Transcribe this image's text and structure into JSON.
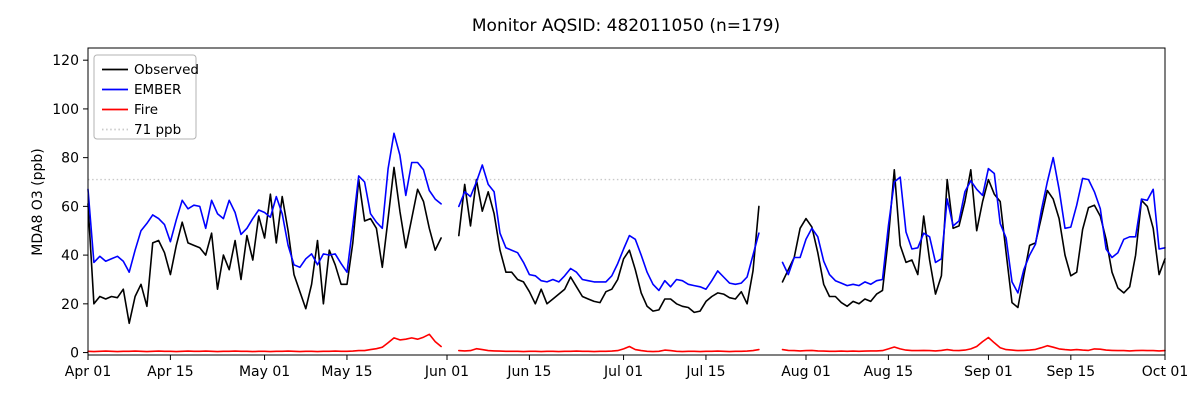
{
  "chart_data": {
    "type": "line",
    "title": "Monitor AQSID: 482011050 (n=179)",
    "xlabel": "",
    "ylabel": "MDA8 O3 (ppb)",
    "ylim": [
      -1,
      125
    ],
    "yticks": [
      0,
      20,
      40,
      60,
      80,
      100,
      120
    ],
    "xlim": [
      0,
      183
    ],
    "x_unit": "days since Apr 01",
    "xticks": [
      {
        "pos": 0,
        "label": "Apr 01"
      },
      {
        "pos": 14,
        "label": "Apr 15"
      },
      {
        "pos": 30,
        "label": "May 01"
      },
      {
        "pos": 44,
        "label": "May 15"
      },
      {
        "pos": 61,
        "label": "Jun 01"
      },
      {
        "pos": 75,
        "label": "Jun 15"
      },
      {
        "pos": 91,
        "label": "Jul 01"
      },
      {
        "pos": 105,
        "label": "Jul 15"
      },
      {
        "pos": 122,
        "label": "Aug 01"
      },
      {
        "pos": 136,
        "label": "Aug 15"
      },
      {
        "pos": 153,
        "label": "Sep 01"
      },
      {
        "pos": 167,
        "label": "Sep 15"
      },
      {
        "pos": 183,
        "label": "Oct 01"
      }
    ],
    "grid": false,
    "n_points": 179,
    "data_gaps": [
      "Jun 01-Jun 02",
      "Jul 25-Jul 27"
    ],
    "threshold": {
      "label": "71 ppb",
      "value": 71,
      "color": "#c9c9c9",
      "style": "dotted"
    },
    "legend": {
      "position": "upper-left",
      "entries": [
        {
          "label": "Observed",
          "color": "#000000",
          "dash": "solid"
        },
        {
          "label": "EMBER",
          "color": "#0000ff",
          "dash": "solid"
        },
        {
          "label": "Fire",
          "color": "#ff0000",
          "dash": "solid"
        },
        {
          "label": "71 ppb",
          "color": "#c9c9c9",
          "dash": "dotted"
        }
      ]
    },
    "series": [
      {
        "name": "Observed",
        "color": "#000000",
        "values": [
          61,
          20,
          23,
          22,
          23,
          22.5,
          26,
          12,
          23,
          28,
          19,
          45,
          46,
          41,
          32,
          44,
          53.5,
          45,
          44,
          43,
          40,
          49,
          26,
          40,
          34,
          46,
          30,
          48,
          38,
          56,
          47,
          65,
          45,
          64,
          50,
          32,
          25,
          18,
          28,
          46,
          20,
          42,
          36,
          28,
          28,
          45,
          71,
          54,
          55,
          51,
          35,
          55,
          76,
          58,
          43,
          55,
          67,
          62,
          51,
          42,
          47,
          null,
          null,
          48,
          69,
          52,
          71,
          58,
          66,
          57,
          42,
          33,
          33,
          30,
          29,
          25,
          20,
          26,
          20,
          22,
          24,
          26,
          31,
          27,
          23,
          22,
          21,
          20.5,
          25,
          26,
          30,
          38.5,
          42,
          34,
          24.5,
          19,
          17,
          17.5,
          22,
          22,
          20,
          19,
          18.5,
          16.5,
          17,
          21,
          23,
          24.5,
          24,
          22.5,
          22,
          25,
          20,
          33.5,
          60,
          null,
          null,
          null,
          29,
          34,
          39,
          51,
          55,
          51.5,
          41,
          28,
          23,
          23,
          20.5,
          19,
          21,
          20,
          22,
          21,
          24,
          25.5,
          47,
          75,
          44,
          37,
          38,
          32,
          56,
          38,
          24,
          31.5,
          71,
          51,
          52,
          62,
          75,
          50,
          62,
          71,
          65,
          62,
          41,
          20.5,
          18.5,
          31.5,
          44,
          45,
          55.5,
          66.5,
          63,
          55,
          40,
          31.5,
          33,
          50.5,
          59.5,
          60.5,
          56,
          46.5,
          33,
          26.5,
          24.5,
          27,
          40,
          62.5,
          60,
          51,
          32,
          38.5
        ]
      },
      {
        "name": "EMBER",
        "color": "#0000ff",
        "values": [
          67,
          37,
          39.5,
          37.5,
          38.5,
          39.5,
          37.5,
          33,
          42,
          50,
          53,
          56.5,
          55,
          52.5,
          45.5,
          54.5,
          62.5,
          59,
          60.5,
          60,
          51,
          62.5,
          57,
          55,
          62.5,
          57.5,
          48.5,
          51,
          55,
          58.5,
          57.5,
          55.5,
          64,
          57,
          44,
          36,
          35,
          38.5,
          40.5,
          36,
          40.5,
          40,
          40.5,
          36.5,
          33,
          52,
          72.5,
          70,
          57,
          53.5,
          51,
          75.5,
          90,
          81,
          64.5,
          78,
          78,
          75,
          66.5,
          63,
          61,
          null,
          null,
          60,
          66,
          64,
          70,
          77,
          69,
          66,
          49,
          43,
          42,
          41,
          37,
          32,
          31.5,
          29.5,
          29,
          30,
          29,
          31.5,
          34.5,
          33,
          30,
          29.5,
          29,
          29,
          29,
          31.5,
          36.5,
          42.5,
          48,
          46.5,
          40,
          33,
          28,
          25.5,
          29.5,
          27,
          30,
          29.5,
          28,
          27.5,
          27,
          26,
          29.5,
          33.5,
          31,
          28.5,
          28,
          28.5,
          31,
          40,
          49,
          null,
          null,
          null,
          37,
          32,
          39,
          39,
          46.5,
          51,
          47.5,
          37.5,
          32,
          29.5,
          28.5,
          27.5,
          28,
          27.5,
          29,
          28,
          29.5,
          30,
          52,
          70,
          72,
          49.5,
          42.5,
          43,
          49,
          47.5,
          37,
          38.5,
          63,
          52,
          54,
          66,
          70.5,
          67,
          64.5,
          75.5,
          73.5,
          53,
          47,
          29,
          24.5,
          34,
          40,
          44.5,
          58.5,
          70,
          80,
          67,
          51,
          51.5,
          60.5,
          71.5,
          71,
          66,
          59,
          42.5,
          39,
          41,
          46.5,
          47.5,
          47.5,
          63,
          62.5,
          67,
          42.5,
          43
        ]
      },
      {
        "name": "Fire",
        "color": "#ff0000",
        "values": [
          0.5,
          0.4,
          0.5,
          0.6,
          0.5,
          0.4,
          0.5,
          0.5,
          0.6,
          0.5,
          0.4,
          0.5,
          0.6,
          0.5,
          0.5,
          0.4,
          0.5,
          0.6,
          0.5,
          0.5,
          0.6,
          0.5,
          0.4,
          0.5,
          0.5,
          0.6,
          0.5,
          0.5,
          0.4,
          0.5,
          0.5,
          0.4,
          0.5,
          0.5,
          0.6,
          0.5,
          0.4,
          0.5,
          0.5,
          0.4,
          0.5,
          0.5,
          0.6,
          0.5,
          0.5,
          0.6,
          0.8,
          0.8,
          1.2,
          1.6,
          2.2,
          4,
          6,
          5.2,
          5.5,
          6,
          5.5,
          6.3,
          7.5,
          4.5,
          2.5,
          null,
          null,
          0.8,
          0.7,
          0.8,
          1.6,
          1.2,
          0.8,
          0.7,
          0.6,
          0.5,
          0.5,
          0.5,
          0.4,
          0.5,
          0.5,
          0.4,
          0.5,
          0.5,
          0.4,
          0.5,
          0.5,
          0.6,
          0.5,
          0.5,
          0.4,
          0.5,
          0.5,
          0.6,
          0.8,
          1.5,
          2.5,
          1.2,
          0.8,
          0.5,
          0.4,
          0.5,
          1,
          0.8,
          0.5,
          0.4,
          0.5,
          0.5,
          0.4,
          0.5,
          0.5,
          0.6,
          0.5,
          0.4,
          0.5,
          0.5,
          0.6,
          0.8,
          1.2,
          null,
          null,
          null,
          1.2,
          0.9,
          0.8,
          0.7,
          0.8,
          0.9,
          0.7,
          0.6,
          0.5,
          0.5,
          0.6,
          0.5,
          0.6,
          0.5,
          0.6,
          0.7,
          0.7,
          0.8,
          1.5,
          2.3,
          1.5,
          1,
          0.8,
          0.8,
          0.9,
          0.8,
          0.7,
          0.9,
          1.2,
          0.9,
          0.8,
          1,
          1.5,
          2.5,
          4.5,
          6.2,
          4,
          2,
          1.2,
          1,
          0.8,
          0.9,
          1,
          1.3,
          2,
          2.8,
          2.2,
          1.5,
          1.2,
          1,
          1.2,
          1,
          0.9,
          1.5,
          1.4,
          1,
          0.9,
          0.8,
          0.8,
          0.7,
          0.8,
          0.9,
          0.8,
          0.8,
          0.7,
          0.8
        ]
      }
    ]
  }
}
